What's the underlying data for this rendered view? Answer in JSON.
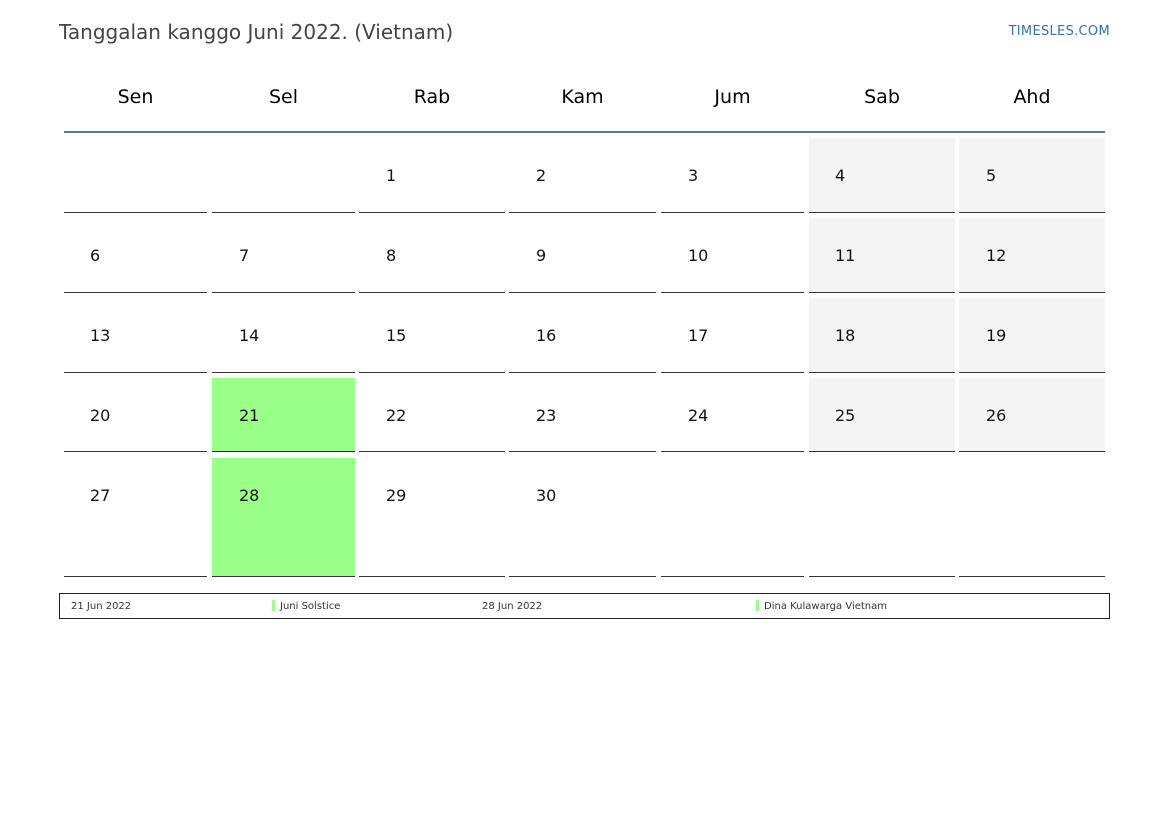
{
  "title": "Tanggalan kanggo Juni 2022. (Vietnam)",
  "brand": "TIMESLES.COM",
  "colors": {
    "weekend": "#f4f4f4",
    "holiday": "#99ff88",
    "header_rule": "#5a7696",
    "brand": "#3572b0"
  },
  "weekdays": [
    "Sen",
    "Sel",
    "Rab",
    "Kam",
    "Jum",
    "Sab",
    "Ahd"
  ],
  "weeks": [
    [
      null,
      null,
      1,
      2,
      3,
      4,
      5
    ],
    [
      6,
      7,
      8,
      9,
      10,
      11,
      12
    ],
    [
      13,
      14,
      15,
      16,
      17,
      18,
      19
    ],
    [
      20,
      21,
      22,
      23,
      24,
      25,
      26
    ],
    [
      27,
      28,
      29,
      30,
      null,
      null,
      null
    ]
  ],
  "holiday_days": [
    21,
    28
  ],
  "legend": [
    {
      "date": "21 Jun 2022",
      "name": "Juni Solstice"
    },
    {
      "date": "28 Jun 2022",
      "name": "Dina Kulawarga Vietnam"
    }
  ]
}
